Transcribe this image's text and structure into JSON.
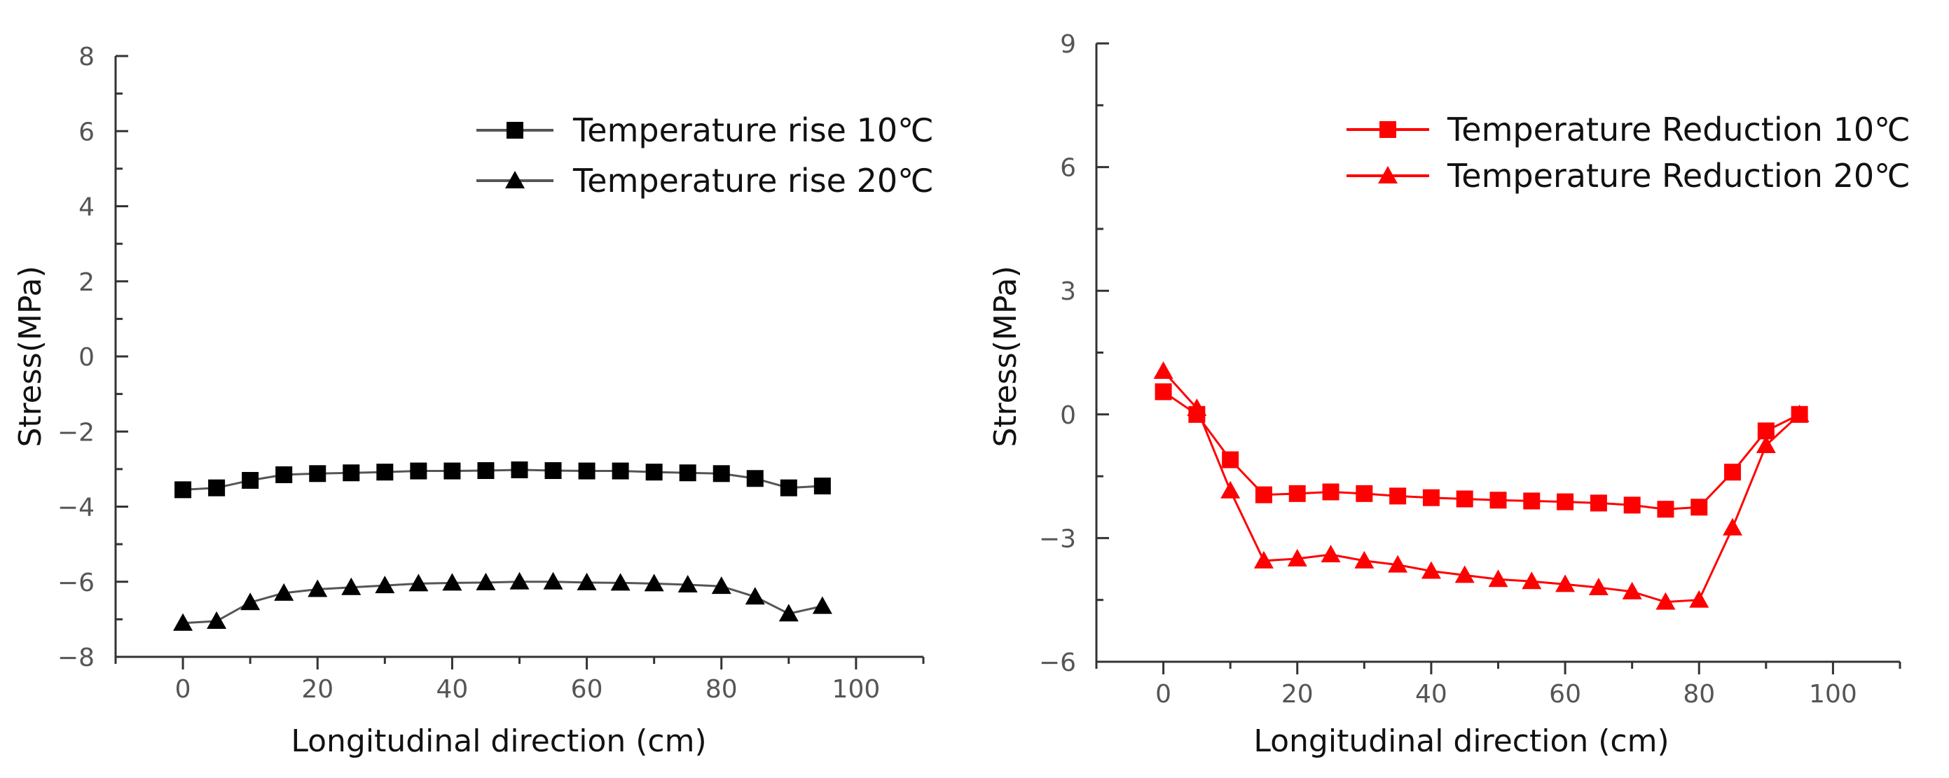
{
  "chart_data": [
    {
      "type": "line",
      "xlabel": "Longitudinal direction (cm)",
      "ylabel": "Stress(MPa)",
      "xlim": [
        -10,
        110
      ],
      "ylim": [
        -8,
        8
      ],
      "xticks": [
        0,
        20,
        40,
        60,
        80,
        100
      ],
      "yticks": [
        -8,
        -6,
        -4,
        -2,
        0,
        2,
        4,
        6,
        8
      ],
      "ytick_labels": [
        "−8",
        "−6",
        "−4",
        "−2",
        "0",
        "2",
        "4",
        "6",
        "8"
      ],
      "legend_position": "top-right",
      "grid": false,
      "series": [
        {
          "name": "Temperature rise 10℃",
          "marker": "square",
          "color": "#000000",
          "line_color": "#555555",
          "x": [
            0,
            5,
            10,
            15,
            20,
            25,
            30,
            35,
            40,
            45,
            50,
            55,
            60,
            65,
            70,
            75,
            80,
            85,
            90,
            95
          ],
          "y": [
            -3.55,
            -3.5,
            -3.3,
            -3.15,
            -3.12,
            -3.1,
            -3.08,
            -3.05,
            -3.05,
            -3.04,
            -3.02,
            -3.04,
            -3.05,
            -3.05,
            -3.08,
            -3.1,
            -3.12,
            -3.25,
            -3.5,
            -3.45
          ]
        },
        {
          "name": "Temperature rise 20℃",
          "marker": "triangle",
          "color": "#000000",
          "line_color": "#555555",
          "x": [
            0,
            5,
            10,
            15,
            20,
            25,
            30,
            35,
            40,
            45,
            50,
            55,
            60,
            65,
            70,
            75,
            80,
            85,
            90,
            95
          ],
          "y": [
            -7.1,
            -7.05,
            -6.55,
            -6.3,
            -6.2,
            -6.15,
            -6.1,
            -6.05,
            -6.03,
            -6.02,
            -6.0,
            -6.0,
            -6.02,
            -6.03,
            -6.05,
            -6.08,
            -6.12,
            -6.4,
            -6.85,
            -6.65
          ]
        }
      ]
    },
    {
      "type": "line",
      "xlabel": "Longitudinal direction (cm)",
      "ylabel": "Stress(MPa)",
      "xlim": [
        -10,
        110
      ],
      "ylim": [
        -6,
        9
      ],
      "xticks": [
        0,
        20,
        40,
        60,
        80,
        100
      ],
      "yticks": [
        -6,
        -3,
        0,
        3,
        6,
        9
      ],
      "ytick_labels": [
        "−6",
        "−3",
        "0",
        "3",
        "6",
        "9"
      ],
      "legend_position": "top-right",
      "grid": false,
      "series": [
        {
          "name": "Temperature Reduction 10℃",
          "marker": "square",
          "color": "#ff0000",
          "line_color": "#ff0000",
          "x": [
            0,
            5,
            10,
            15,
            20,
            25,
            30,
            35,
            40,
            45,
            50,
            55,
            60,
            65,
            70,
            75,
            80,
            85,
            90,
            95
          ],
          "y": [
            0.55,
            0.0,
            -1.1,
            -1.95,
            -1.92,
            -1.88,
            -1.92,
            -1.98,
            -2.02,
            -2.05,
            -2.08,
            -2.1,
            -2.12,
            -2.15,
            -2.2,
            -2.3,
            -2.25,
            -1.4,
            -0.4,
            0.0
          ]
        },
        {
          "name": "Temperature Reduction 20℃",
          "marker": "triangle",
          "color": "#ff0000",
          "line_color": "#ff0000",
          "x": [
            0,
            5,
            10,
            15,
            20,
            25,
            30,
            35,
            40,
            45,
            50,
            55,
            60,
            65,
            70,
            75,
            80,
            85,
            90,
            95
          ],
          "y": [
            1.05,
            0.15,
            -1.85,
            -3.55,
            -3.5,
            -3.4,
            -3.55,
            -3.65,
            -3.8,
            -3.9,
            -4.0,
            -4.05,
            -4.12,
            -4.2,
            -4.3,
            -4.55,
            -4.5,
            -2.75,
            -0.75,
            0.0
          ]
        }
      ]
    }
  ]
}
